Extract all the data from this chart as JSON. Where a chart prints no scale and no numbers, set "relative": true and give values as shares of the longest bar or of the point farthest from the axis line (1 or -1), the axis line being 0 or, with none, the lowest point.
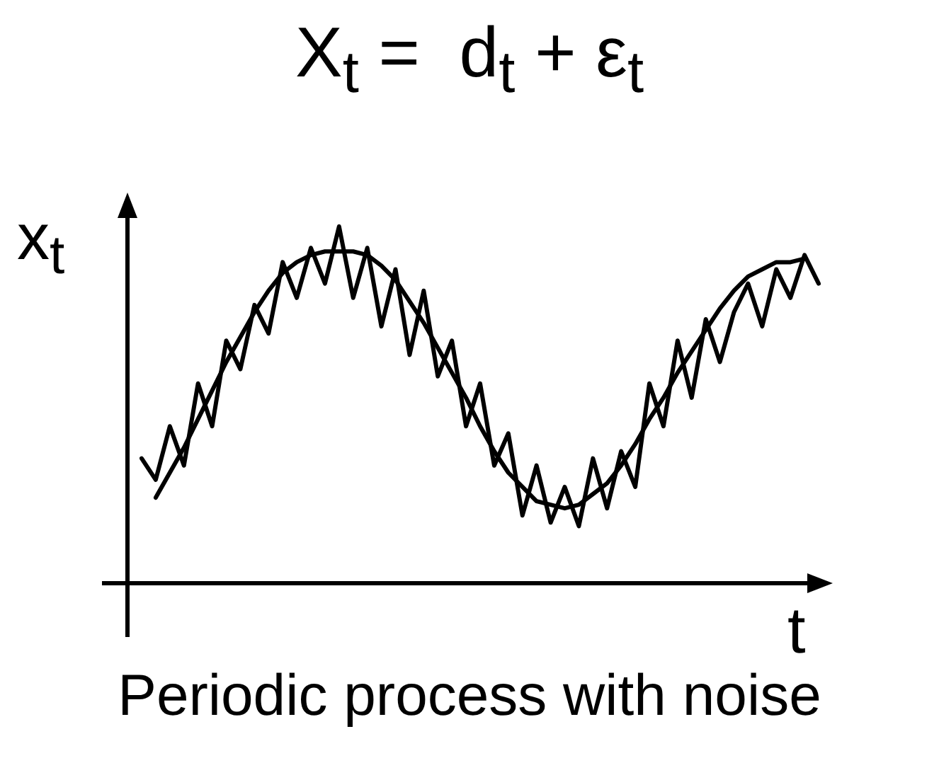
{
  "chart_data": {
    "type": "line",
    "title": "X$_{t}$ =  d$_{t}$ + ε$_{t}$",
    "xlabel": "t",
    "ylabel": "x$_{t}$",
    "relative": true,
    "marker": "none",
    "categories": [
      null,
      null,
      null,
      null,
      null,
      null,
      null,
      null,
      null,
      null,
      null,
      null,
      null,
      null,
      null,
      null,
      null,
      null,
      null,
      null,
      null,
      null,
      null,
      null,
      null,
      null,
      null,
      null,
      null,
      null,
      null,
      null,
      null,
      null,
      null,
      null,
      null,
      null,
      null,
      null,
      null,
      null,
      null,
      null,
      null,
      null,
      null,
      null,
      null
    ],
    "series": [
      {
        "color": "#000000",
        "values": [
          0.35,
          0.29,
          0.44,
          0.33,
          0.56,
          0.44,
          0.68,
          0.6,
          0.78,
          0.7,
          0.9,
          0.8,
          0.94,
          0.84,
          1,
          0.8,
          0.94,
          0.72,
          0.88,
          0.64,
          0.82,
          0.58,
          0.68,
          0.44,
          0.56,
          0.33,
          0.42,
          0.19,
          0.33,
          0.17,
          0.27,
          0.16,
          0.35,
          0.21,
          0.37,
          0.27,
          0.56,
          0.44,
          0.68,
          0.52,
          0.74,
          0.62,
          0.76,
          0.84,
          0.72,
          0.88,
          0.8,
          0.92,
          0.84
        ]
      },
      {
        "color": "#000000",
        "values": [
          null,
          0.24,
          0.31,
          0.38,
          0.46,
          0.54,
          0.62,
          0.69,
          0.76,
          0.82,
          0.87,
          0.9,
          0.92,
          0.93,
          0.93,
          0.93,
          0.92,
          0.89,
          0.85,
          0.79,
          0.73,
          0.66,
          0.59,
          0.52,
          0.44,
          0.37,
          0.31,
          0.27,
          0.23,
          0.22,
          0.21,
          0.22,
          0.25,
          0.28,
          0.33,
          0.39,
          0.46,
          0.52,
          0.59,
          0.65,
          0.71,
          0.77,
          0.82,
          0.86,
          0.88,
          0.9,
          0.9,
          0.91,
          null
        ]
      }
    ],
    "annotations": [
      "Periodic process with noise"
    ]
  }
}
